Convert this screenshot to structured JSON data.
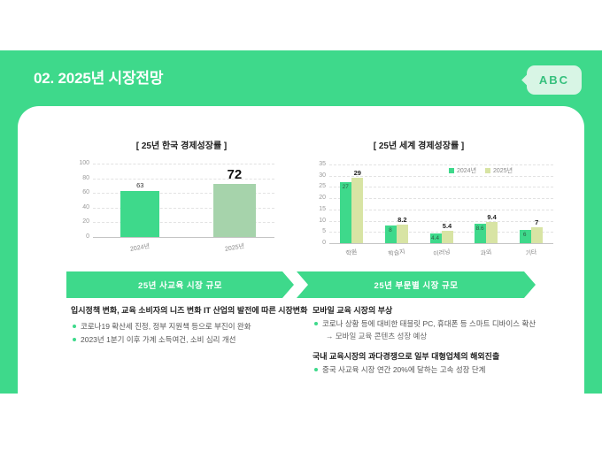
{
  "slide": {
    "header": {
      "title": "02. 2025년 시장전망",
      "logo_text": "ABC"
    },
    "banners": [
      {
        "label": "25년 사교육 시장 규모"
      },
      {
        "label": "25년 부문별 시장 규모"
      }
    ],
    "left_section": {
      "heading": "입시정책 변화, 교육 소비자의 니즈 변화 IT 산업의 발전에 따른 시장변화",
      "bullets": [
        "코로나19 확산세 진정, 정부 지원책 등으로 부진이 완화",
        "2023년 1분기 이후 가계 소득여건, 소비 심리 개선"
      ]
    },
    "right_section": {
      "block1": {
        "heading": "모바일 교육 시장의 부상",
        "bullet": "코로나 상황 등에 대비한 태블릿 PC, 휴대폰 등 스마트 디바이스 확산",
        "subnote": "→ 모바일 교육 콘텐츠 성장 예상"
      },
      "block2": {
        "heading": "국내 교육시장의 과다경쟁으로 일부 대형업체의 해외진출",
        "bullet": "중국 사교육 시장 연간 20%에 달하는 고속 성장 단계"
      }
    }
  },
  "colors": {
    "green": "#3ed98b",
    "sage": "#a6d3ab",
    "pale_lime": "#d8e4a4",
    "badge_bg": "#d8f5e5"
  },
  "chart_data": [
    {
      "type": "bar",
      "title": "[ 25년 한국 경제성장률 ]",
      "categories": [
        "2024년",
        "2025년"
      ],
      "values": [
        63,
        72
      ],
      "ylim": [
        0,
        100
      ],
      "yticks": [
        0,
        20,
        40,
        60,
        80,
        100
      ],
      "grid": true,
      "bar_colors": [
        "#3ed98b",
        "#a6d3ab"
      ],
      "emphasized_index": 1
    },
    {
      "type": "bar",
      "title": "[ 25년 세계 경제성장률 ]",
      "categories": [
        "학원",
        "학습지",
        "이러닝",
        "과외",
        "기타"
      ],
      "series": [
        {
          "name": "2024년",
          "values": [
            27,
            8,
            4.4,
            8.6,
            6
          ],
          "color": "#3ed98b"
        },
        {
          "name": "2025년",
          "values": [
            29,
            8.2,
            5.4,
            9.4,
            7
          ],
          "color": "#d8e4a4"
        }
      ],
      "ylim": [
        0,
        35
      ],
      "yticks": [
        0,
        5,
        10,
        15,
        20,
        25,
        30,
        35
      ],
      "grid": true,
      "legend_position": "top-right"
    }
  ]
}
